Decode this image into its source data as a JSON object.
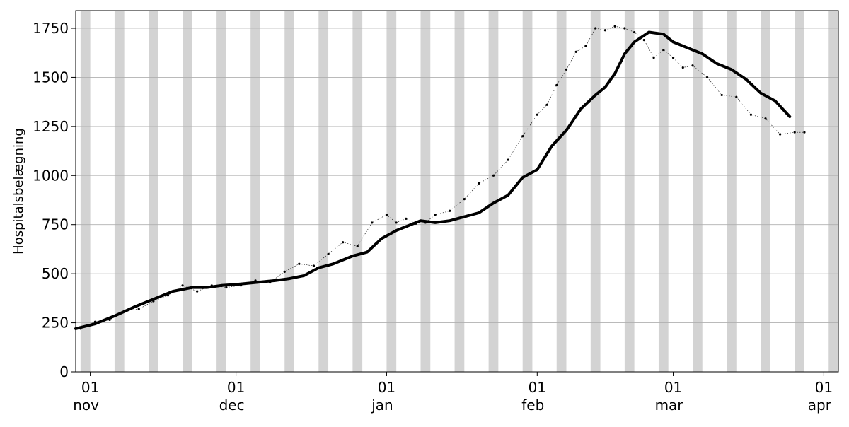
{
  "chart_data": {
    "type": "line",
    "title": "",
    "ylabel": "Hospitalsbelægning",
    "xlabel": "",
    "ylim": [
      0,
      1840
    ],
    "xlim": [
      "2021-10-29",
      "2022-04-04"
    ],
    "yticks": [
      0,
      250,
      500,
      750,
      1000,
      1250,
      1500,
      1750
    ],
    "xticks": [
      {
        "date": "2021-11-01",
        "day": "01",
        "month": "nov"
      },
      {
        "date": "2021-12-01",
        "day": "01",
        "month": "dec"
      },
      {
        "date": "2022-01-01",
        "day": "01",
        "month": "jan"
      },
      {
        "date": "2022-02-01",
        "day": "01",
        "month": "feb"
      },
      {
        "date": "2022-03-01",
        "day": "01",
        "month": "mar"
      },
      {
        "date": "2022-04-01",
        "day": "01",
        "month": "apr"
      }
    ],
    "grid": "horizontal",
    "weekend_shading": true,
    "colors": {
      "line": "#000000",
      "weekend_band": "#d3d3d3",
      "grid": "#b0b0b0"
    },
    "series": [
      {
        "style": "dotted-with-markers",
        "x": [
          "2021-10-30",
          "2021-11-02",
          "2021-11-05",
          "2021-11-08",
          "2021-11-11",
          "2021-11-14",
          "2021-11-17",
          "2021-11-20",
          "2021-11-23",
          "2021-11-26",
          "2021-11-29",
          "2021-12-02",
          "2021-12-05",
          "2021-12-08",
          "2021-12-11",
          "2021-12-14",
          "2021-12-17",
          "2021-12-20",
          "2021-12-23",
          "2021-12-26",
          "2021-12-29",
          "2022-01-01",
          "2022-01-03",
          "2022-01-05",
          "2022-01-07",
          "2022-01-09",
          "2022-01-11",
          "2022-01-14",
          "2022-01-17",
          "2022-01-20",
          "2022-01-23",
          "2022-01-26",
          "2022-01-29",
          "2022-02-01",
          "2022-02-03",
          "2022-02-05",
          "2022-02-07",
          "2022-02-09",
          "2022-02-11",
          "2022-02-13",
          "2022-02-15",
          "2022-02-17",
          "2022-02-19",
          "2022-02-21",
          "2022-02-23",
          "2022-02-25",
          "2022-02-27",
          "2022-03-01",
          "2022-03-03",
          "2022-03-05",
          "2022-03-08",
          "2022-03-11",
          "2022-03-14",
          "2022-03-17",
          "2022-03-20",
          "2022-03-23",
          "2022-03-26",
          "2022-03-28"
        ],
        "y": [
          220,
          255,
          265,
          310,
          320,
          360,
          390,
          440,
          410,
          440,
          430,
          440,
          465,
          455,
          510,
          550,
          540,
          600,
          660,
          640,
          760,
          800,
          760,
          780,
          755,
          760,
          800,
          820,
          880,
          960,
          1000,
          1080,
          1200,
          1310,
          1360,
          1460,
          1540,
          1630,
          1660,
          1750,
          1740,
          1760,
          1750,
          1730,
          1690,
          1600,
          1640,
          1600,
          1550,
          1560,
          1500,
          1410,
          1400,
          1310,
          1290,
          1210,
          1220,
          1220
        ]
      },
      {
        "style": "thick-smoothed",
        "x": [
          "2021-10-29",
          "2021-11-02",
          "2021-11-06",
          "2021-11-10",
          "2021-11-14",
          "2021-11-18",
          "2021-11-22",
          "2021-11-25",
          "2021-11-28",
          "2021-12-01",
          "2021-12-05",
          "2021-12-09",
          "2021-12-12",
          "2021-12-15",
          "2021-12-18",
          "2021-12-21",
          "2021-12-25",
          "2021-12-28",
          "2021-12-31",
          "2022-01-03",
          "2022-01-05",
          "2022-01-08",
          "2022-01-11",
          "2022-01-14",
          "2022-01-17",
          "2022-01-20",
          "2022-01-23",
          "2022-01-26",
          "2022-01-29",
          "2022-02-01",
          "2022-02-04",
          "2022-02-07",
          "2022-02-10",
          "2022-02-13",
          "2022-02-15",
          "2022-02-17",
          "2022-02-19",
          "2022-02-21",
          "2022-02-24",
          "2022-02-27",
          "2022-03-01",
          "2022-03-04",
          "2022-03-07",
          "2022-03-10",
          "2022-03-13",
          "2022-03-16",
          "2022-03-19",
          "2022-03-22",
          "2022-03-25"
        ],
        "y": [
          220,
          245,
          285,
          330,
          370,
          410,
          430,
          430,
          440,
          445,
          455,
          465,
          475,
          490,
          530,
          550,
          590,
          610,
          680,
          720,
          740,
          770,
          760,
          770,
          790,
          810,
          860,
          900,
          990,
          1030,
          1150,
          1230,
          1340,
          1410,
          1450,
          1520,
          1620,
          1680,
          1730,
          1720,
          1680,
          1650,
          1620,
          1570,
          1540,
          1490,
          1420,
          1380,
          1300
        ]
      }
    ]
  }
}
